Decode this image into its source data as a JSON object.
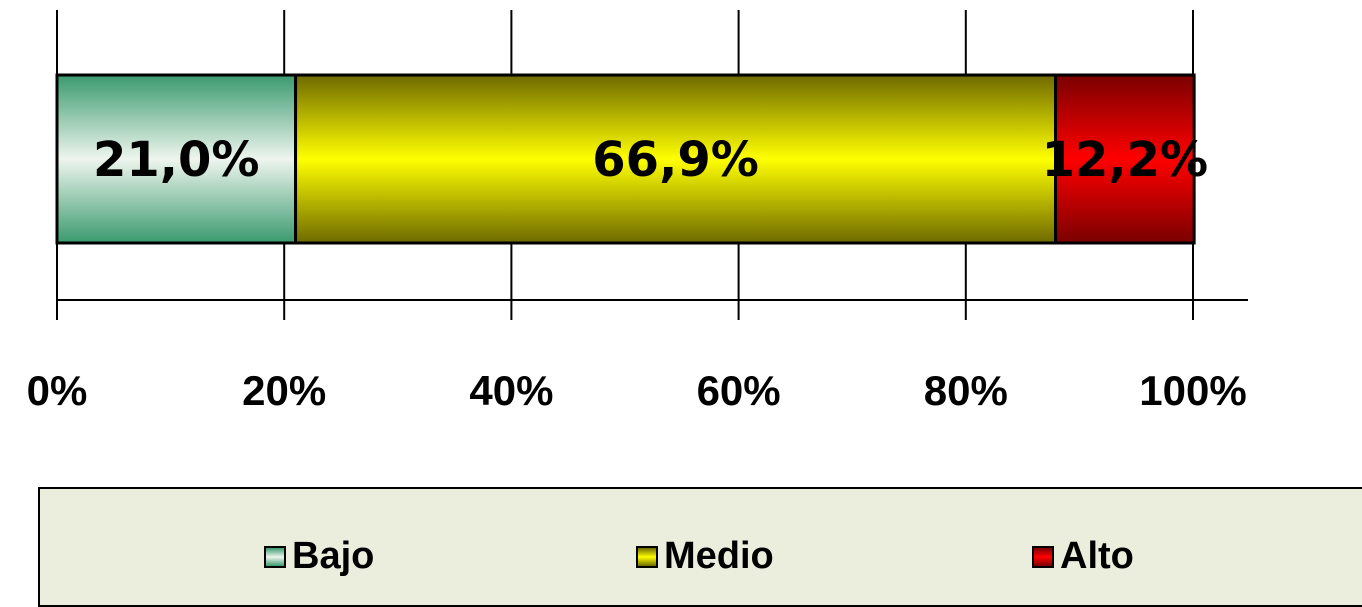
{
  "chart_data": {
    "type": "bar",
    "orientation": "horizontal-stacked-100",
    "title": "",
    "xlabel": "",
    "ylabel": "",
    "xlim": [
      0,
      100
    ],
    "x_ticks": [
      "0%",
      "20%",
      "40%",
      "60%",
      "80%",
      "100%"
    ],
    "grid": true,
    "legend_position": "bottom",
    "series": [
      {
        "name": "Bajo",
        "value": 21.0,
        "label": "21,0%",
        "color": "#3a9a6e"
      },
      {
        "name": "Medio",
        "value": 66.9,
        "label": "66,9%",
        "color": "#f5f500"
      },
      {
        "name": "Alto",
        "value": 12.2,
        "label": "12,2%",
        "color": "#e00000"
      }
    ]
  }
}
